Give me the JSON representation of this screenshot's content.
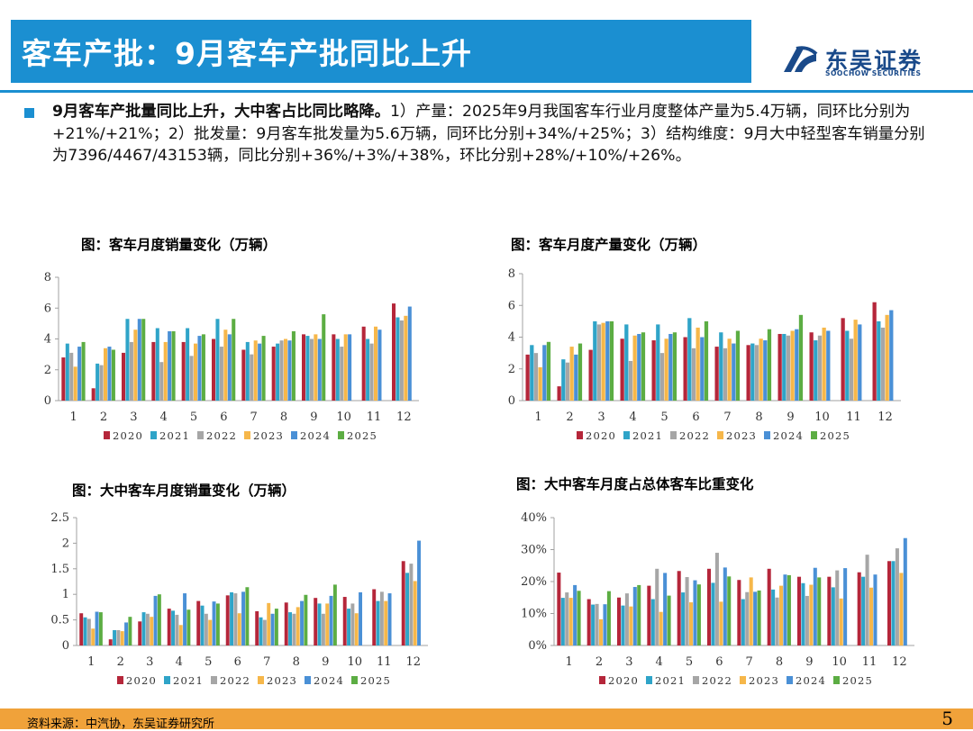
{
  "header": {
    "title": "客车产批：9月客车产批同比上升",
    "logo_cn": "东吴证券",
    "logo_en": "SOOCHOW SECURITIES"
  },
  "summary": {
    "lead": "9月客车产批量同比上升，大中客占比同比略降。",
    "body": "1）产量：2025年9月我国客车行业月度整体产量为5.4万辆，同环比分别为+21%/+21%；2）批发量：9月客车批发量为5.6万辆，同环比分别+34%/+25%；3）结构维度：9月大中轻型客车销量分别为7396/4467/43153辆，同比分别+36%/+3%/+38%，环比分别+28%/+10%/+26%。"
  },
  "colors": {
    "accent": "#1b8fd1",
    "footer": "#f0a23a",
    "s2020": "#b5263a",
    "s2021": "#2fa4c8",
    "s2022": "#a6a6a6",
    "s2023": "#f6b74a",
    "s2024": "#4a90d6",
    "s2025": "#5cad43"
  },
  "footer": {
    "source": "资料来源：中汽协，东吴证券研究所",
    "page": "5"
  },
  "chart_data": [
    {
      "id": "sales",
      "type": "bar",
      "title": "图：客车月度销量变化（万辆）",
      "categories": [
        "1",
        "2",
        "3",
        "4",
        "5",
        "6",
        "7",
        "8",
        "9",
        "10",
        "11",
        "12"
      ],
      "ylim": [
        0,
        8
      ],
      "yticks": [
        "0",
        "2",
        "4",
        "6",
        "8"
      ],
      "series": [
        {
          "name": "2020",
          "values": [
            2.8,
            0.8,
            3.1,
            3.8,
            3.8,
            4.0,
            3.3,
            3.5,
            4.3,
            4.3,
            4.8,
            6.3
          ]
        },
        {
          "name": "2021",
          "values": [
            3.7,
            2.4,
            5.3,
            4.7,
            4.7,
            5.3,
            3.8,
            3.7,
            4.2,
            4.0,
            4.0,
            5.4
          ]
        },
        {
          "name": "2022",
          "values": [
            3.1,
            2.3,
            3.8,
            2.5,
            2.9,
            3.5,
            3.0,
            3.9,
            4.0,
            3.5,
            3.7,
            5.2
          ]
        },
        {
          "name": "2023",
          "values": [
            2.2,
            3.4,
            4.6,
            3.8,
            3.7,
            4.6,
            3.9,
            4.0,
            4.3,
            4.3,
            4.8,
            5.5
          ]
        },
        {
          "name": "2024",
          "values": [
            3.5,
            3.5,
            5.3,
            4.5,
            4.2,
            4.3,
            3.7,
            3.9,
            4.0,
            4.3,
            4.6,
            6.1
          ]
        },
        {
          "name": "2025",
          "values": [
            3.8,
            3.3,
            5.3,
            4.5,
            4.3,
            5.3,
            4.2,
            4.5,
            5.6,
            null,
            null,
            null
          ]
        }
      ]
    },
    {
      "id": "production",
      "type": "bar",
      "title": "图：客车月度产量变化（万辆）",
      "categories": [
        "1",
        "2",
        "3",
        "4",
        "5",
        "6",
        "7",
        "8",
        "9",
        "10",
        "11",
        "12"
      ],
      "ylim": [
        0,
        8
      ],
      "yticks": [
        "0",
        "2",
        "4",
        "6",
        "8"
      ],
      "series": [
        {
          "name": "2020",
          "values": [
            2.9,
            0.9,
            3.2,
            3.9,
            3.8,
            4.0,
            3.4,
            3.5,
            4.2,
            4.3,
            5.2,
            6.2
          ]
        },
        {
          "name": "2021",
          "values": [
            3.5,
            2.6,
            5.0,
            4.8,
            4.8,
            5.2,
            4.3,
            3.6,
            4.2,
            3.8,
            4.4,
            5.0
          ]
        },
        {
          "name": "2022",
          "values": [
            3.0,
            2.4,
            4.8,
            2.5,
            3.0,
            3.3,
            3.3,
            3.5,
            4.1,
            4.1,
            3.9,
            4.6
          ]
        },
        {
          "name": "2023",
          "values": [
            2.1,
            3.4,
            4.9,
            4.1,
            3.9,
            4.6,
            3.9,
            3.9,
            4.4,
            4.6,
            5.1,
            5.4
          ]
        },
        {
          "name": "2024",
          "values": [
            3.5,
            2.9,
            5.0,
            4.2,
            4.2,
            4.0,
            3.6,
            3.8,
            4.5,
            4.4,
            4.8,
            5.7
          ]
        },
        {
          "name": "2025",
          "values": [
            3.7,
            3.6,
            5.0,
            4.3,
            4.3,
            5.0,
            4.4,
            4.5,
            5.4,
            null,
            null,
            null
          ]
        }
      ]
    },
    {
      "id": "mid-large-sales",
      "type": "bar",
      "title": "图：大中客车月度销量变化（万辆）",
      "categories": [
        "1",
        "2",
        "3",
        "4",
        "5",
        "6",
        "7",
        "8",
        "9",
        "10",
        "11",
        "12"
      ],
      "ylim": [
        0,
        2.5
      ],
      "yticks": [
        "0",
        "0.5",
        "1",
        "1.5",
        "2",
        "2.5"
      ],
      "series": [
        {
          "name": "2020",
          "values": [
            0.63,
            0.12,
            0.47,
            0.72,
            0.87,
            0.98,
            0.67,
            0.84,
            0.93,
            0.95,
            1.1,
            1.65
          ]
        },
        {
          "name": "2021",
          "values": [
            0.55,
            0.3,
            0.65,
            0.68,
            0.78,
            1.04,
            0.55,
            0.65,
            0.82,
            0.72,
            0.87,
            1.42
          ]
        },
        {
          "name": "2022",
          "values": [
            0.52,
            0.3,
            0.62,
            0.6,
            0.62,
            1.02,
            0.5,
            0.62,
            0.62,
            0.82,
            1.05,
            1.6
          ]
        },
        {
          "name": "2023",
          "values": [
            0.33,
            0.28,
            0.56,
            0.4,
            0.5,
            0.63,
            0.83,
            0.75,
            0.82,
            0.63,
            0.87,
            1.26
          ]
        },
        {
          "name": "2024",
          "values": [
            0.66,
            0.45,
            0.97,
            1.02,
            0.86,
            1.05,
            0.62,
            0.87,
            0.97,
            1.04,
            1.02,
            2.05
          ]
        },
        {
          "name": "2025",
          "values": [
            0.65,
            0.56,
            1.0,
            0.7,
            0.82,
            1.14,
            0.72,
            0.99,
            1.19,
            null,
            null,
            null
          ]
        }
      ]
    },
    {
      "id": "mid-large-share",
      "type": "bar",
      "title": "图：大中客车月度占总体客车比重变化",
      "categories": [
        "1",
        "2",
        "3",
        "4",
        "5",
        "6",
        "7",
        "8",
        "9",
        "10",
        "11",
        "12"
      ],
      "ylim": [
        0,
        40
      ],
      "yticks": [
        "0%",
        "10%",
        "20%",
        "30%",
        "40%"
      ],
      "series": [
        {
          "name": "2020",
          "values": [
            22.8,
            14.5,
            15.0,
            18.7,
            23.3,
            24.0,
            20.5,
            24.0,
            21.5,
            21.5,
            22.9,
            26.4
          ]
        },
        {
          "name": "2021",
          "values": [
            14.9,
            12.8,
            12.5,
            14.5,
            16.6,
            19.6,
            14.5,
            17.5,
            19.5,
            18.2,
            21.5,
            26.4
          ]
        },
        {
          "name": "2022",
          "values": [
            16.6,
            13.0,
            16.3,
            24.0,
            21.4,
            29.0,
            16.7,
            15.0,
            15.5,
            23.5,
            28.4,
            30.4
          ]
        },
        {
          "name": "2023",
          "values": [
            14.9,
            8.2,
            12.2,
            10.5,
            13.5,
            13.7,
            21.3,
            18.7,
            19.0,
            14.7,
            18.1,
            22.7
          ]
        },
        {
          "name": "2024",
          "values": [
            18.9,
            12.9,
            18.3,
            22.7,
            20.4,
            24.4,
            16.8,
            22.2,
            24.3,
            24.2,
            22.2,
            33.6
          ]
        },
        {
          "name": "2025",
          "values": [
            17.1,
            17.0,
            18.9,
            15.6,
            19.1,
            21.6,
            17.2,
            22.0,
            21.3,
            null,
            null,
            null
          ]
        }
      ]
    }
  ]
}
